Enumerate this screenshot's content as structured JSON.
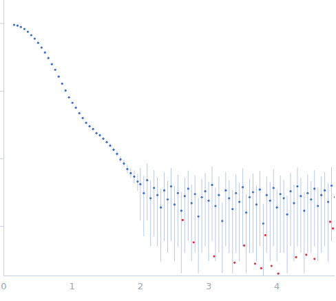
{
  "chart_data": {
    "type": "scatter",
    "log": "y",
    "grid": false,
    "tick_labels": "x",
    "xlim": [
      0,
      4.85
    ],
    "xticks": [
      0,
      1,
      2,
      3,
      4
    ],
    "ylim": [
      0.000185,
      2.2
    ],
    "yticks": [
      0.001,
      0.01,
      0.1,
      1
    ],
    "series": [
      {
        "color": "#3f6fc4",
        "marker": "circle",
        "x": [
          0.151,
          0.201,
          0.251,
          0.302,
          0.352,
          0.402,
          0.452,
          0.503,
          0.553,
          0.603,
          0.653,
          0.704,
          0.754,
          0.804,
          0.854,
          0.905,
          0.955,
          1.005,
          1.055,
          1.106,
          1.156,
          1.206,
          1.256,
          1.307,
          1.357,
          1.407,
          1.457,
          1.508,
          1.558,
          1.608,
          1.658,
          1.709,
          1.759,
          1.809,
          1.859,
          1.91,
          1.96,
          2.0,
          2.05,
          2.1,
          2.15,
          2.2,
          2.25,
          2.3,
          2.35,
          2.4,
          2.45,
          2.5,
          2.55,
          2.6,
          2.65,
          2.7,
          2.75,
          2.8,
          2.85,
          2.9,
          2.95,
          3.0,
          3.05,
          3.1,
          3.15,
          3.2,
          3.25,
          3.3,
          3.35,
          3.4,
          3.45,
          3.5,
          3.55,
          3.6,
          3.65,
          3.7,
          3.75,
          3.8,
          3.85,
          3.9,
          3.95,
          4.0,
          4.05,
          4.1,
          4.15,
          4.2,
          4.25,
          4.3,
          4.35,
          4.4,
          4.45,
          4.5,
          4.55,
          4.6,
          4.65,
          4.7,
          4.75,
          4.8,
          4.85
        ],
        "values": [
          0.955,
          0.931,
          0.889,
          0.829,
          0.755,
          0.671,
          0.597,
          0.518,
          0.44,
          0.373,
          0.309,
          0.25,
          0.207,
          0.164,
          0.129,
          0.102,
          0.0809,
          0.0671,
          0.0569,
          0.0471,
          0.04,
          0.034,
          0.0302,
          0.0275,
          0.0239,
          0.0222,
          0.0198,
          0.0176,
          0.0156,
          0.0136,
          0.0118,
          0.00977,
          0.00849,
          0.00703,
          0.00611,
          0.00543,
          0.0046,
          0.0042,
          0.0031,
          0.0048,
          0.0026,
          0.0037,
          0.0029,
          0.0019,
          0.0034,
          0.0025,
          0.0039,
          0.0021,
          0.0031,
          0.0017,
          0.0028,
          0.0036,
          0.0022,
          0.003,
          0.0014,
          0.0027,
          0.0033,
          0.0024,
          0.0041,
          0.002,
          0.0029,
          0.0012,
          0.0034,
          0.0026,
          0.0018,
          0.0031,
          0.0023,
          0.0038,
          0.0016,
          0.0027,
          0.0032,
          0.0021,
          0.0035,
          0.0011,
          0.0029,
          0.0024,
          0.0037,
          0.0019,
          0.003,
          0.0026,
          0.0015,
          0.0033,
          0.0022,
          0.0039,
          0.0028,
          0.0017,
          0.0031,
          0.0025,
          0.0036,
          0.002,
          0.0029,
          0.0034,
          0.0023,
          0.004,
          0.0027
        ],
        "errors": [
          0.005,
          0.005,
          0.005,
          0.005,
          0.004,
          0.004,
          0.004,
          0.003,
          0.003,
          0.003,
          0.003,
          0.002,
          0.002,
          0.002,
          0.002,
          0.002,
          0.0015,
          0.0015,
          0.0015,
          0.0013,
          0.0013,
          0.0012,
          0.0012,
          0.0012,
          0.0011,
          0.0011,
          0.001,
          0.001,
          0.001,
          0.001,
          0.001,
          0.001,
          0.001,
          0.001,
          0.001,
          0.0012,
          0.0013,
          0.003,
          0.0024,
          0.0036,
          0.0021,
          0.003,
          0.0024,
          0.0016,
          0.0028,
          0.0021,
          0.0033,
          0.0018,
          0.0026,
          0.0015,
          0.0024,
          0.003,
          0.0019,
          0.0026,
          0.0012,
          0.0023,
          0.0028,
          0.0021,
          0.0035,
          0.0017,
          0.0025,
          0.001,
          0.0029,
          0.0022,
          0.0016,
          0.0027,
          0.002,
          0.0033,
          0.0014,
          0.0023,
          0.0028,
          0.0018,
          0.003,
          0.001,
          0.0025,
          0.0021,
          0.0032,
          0.0016,
          0.0026,
          0.0022,
          0.0013,
          0.0028,
          0.0019,
          0.0034,
          0.0024,
          0.0015,
          0.0027,
          0.0021,
          0.0031,
          0.0017,
          0.0025,
          0.0029,
          0.002,
          0.0034,
          0.0023
        ]
      },
      {
        "color": "#e0303a",
        "marker": "circle",
        "x": [
          2.62,
          2.78,
          3.08,
          3.38,
          3.52,
          3.68,
          3.77,
          3.83,
          3.92,
          4.02,
          4.28,
          4.43,
          4.55,
          4.78,
          4.82
        ],
        "values": [
          0.00124,
          0.00058,
          0.00036,
          0.00029,
          0.00052,
          0.00028,
          0.00024,
          0.00074,
          0.00026,
          0.0002,
          0.00035,
          0.00038,
          0.00033,
          0.00117,
          0.00093
        ]
      }
    ]
  }
}
